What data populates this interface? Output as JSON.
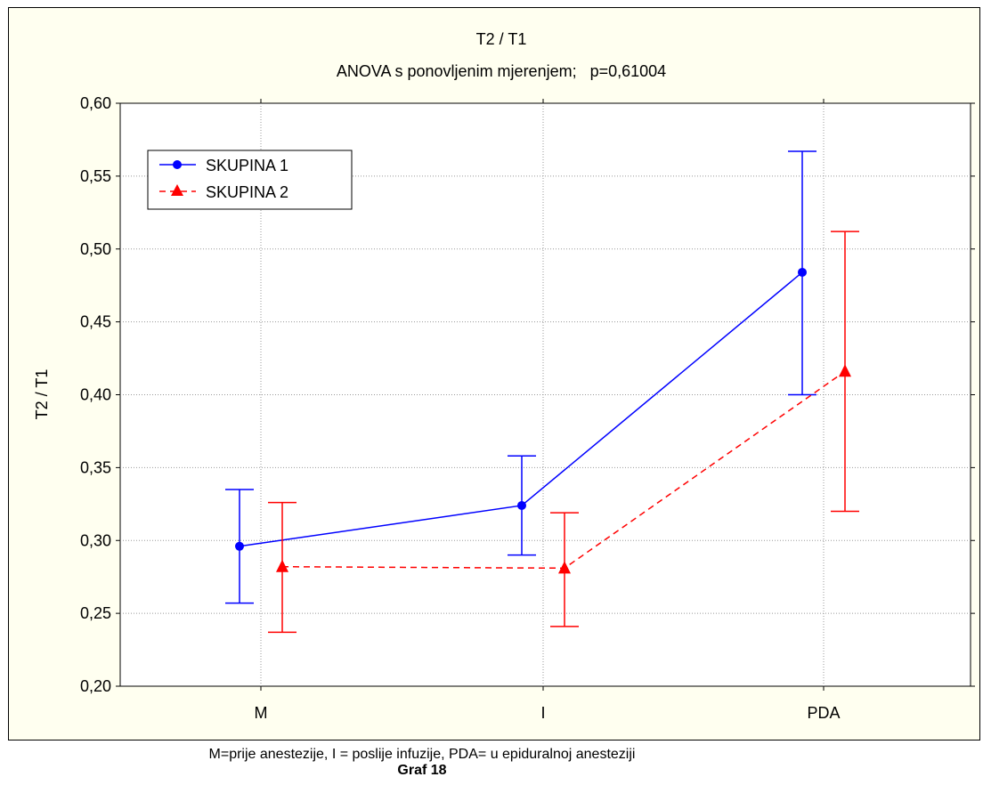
{
  "chart_data": {
    "type": "line",
    "title": "T2 / T1",
    "subtitle": "ANOVA s ponovljenim mjerenjem;   p=0,61004",
    "ylabel": "T2 / T1",
    "xlabel": "",
    "categories": [
      "M",
      "I",
      "PDA"
    ],
    "ylim": [
      0.2,
      0.6
    ],
    "yticks": [
      "0,20",
      "0,25",
      "0,30",
      "0,35",
      "0,40",
      "0,45",
      "0,50",
      "0,55",
      "0,60"
    ],
    "grid": true,
    "legend_position": "top-left",
    "series": [
      {
        "name": "SKUPINA 1",
        "color": "#0000ff",
        "marker": "circle",
        "line": "solid",
        "values": [
          0.296,
          0.324,
          0.484
        ],
        "err_low": [
          0.257,
          0.29,
          0.4
        ],
        "err_high": [
          0.335,
          0.358,
          0.567
        ]
      },
      {
        "name": "SKUPINA 2",
        "color": "#ff0000",
        "marker": "triangle",
        "line": "dashed",
        "values": [
          0.282,
          0.281,
          0.416
        ],
        "err_low": [
          0.237,
          0.241,
          0.32
        ],
        "err_high": [
          0.326,
          0.319,
          0.512
        ]
      }
    ]
  },
  "caption": "M=prije anestezije, I = poslije infuzije, PDA= u epiduralnoj anesteziji",
  "graph_label": "Graf 18"
}
